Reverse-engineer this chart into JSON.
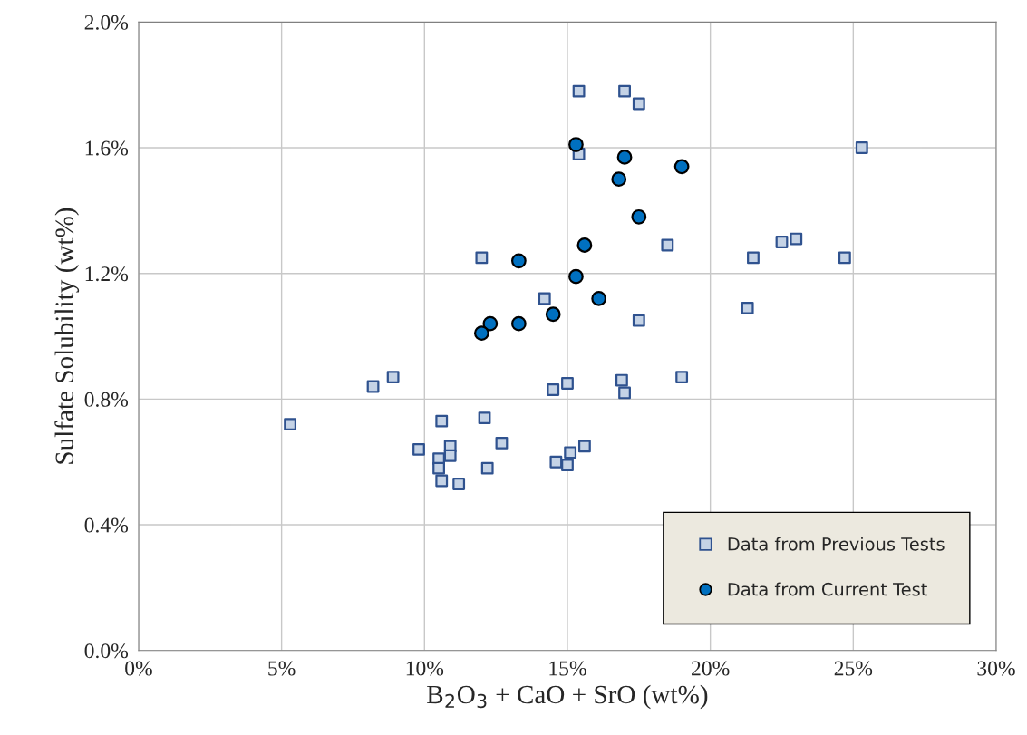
{
  "chart_data": {
    "type": "scatter",
    "xlabel": "B$_{2}$O$_{3}$ + CaO + SrO (wt%)",
    "ylabel": "Sulfate Solubility (wt%)",
    "xlim": [
      0,
      30
    ],
    "ylim": [
      0,
      2
    ],
    "xticks": [
      {
        "value": 0,
        "label": "0%"
      },
      {
        "value": 5,
        "label": "5%"
      },
      {
        "value": 10,
        "label": "10%"
      },
      {
        "value": 15,
        "label": "15%"
      },
      {
        "value": 20,
        "label": "20%"
      },
      {
        "value": 25,
        "label": "25%"
      },
      {
        "value": 30,
        "label": "30%"
      }
    ],
    "yticks": [
      {
        "value": 0,
        "label": "0.0%"
      },
      {
        "value": 0.4,
        "label": "0.4%"
      },
      {
        "value": 0.8,
        "label": "0.8%"
      },
      {
        "value": 1.2,
        "label": "1.2%"
      },
      {
        "value": 1.6,
        "label": "1.6%"
      },
      {
        "value": 2.0,
        "label": "2.0%"
      }
    ],
    "grid": true,
    "legend": "bottom right",
    "series": [
      {
        "name": "Data from Previous Tests",
        "color": "#c5d3e6",
        "marker": "square",
        "x": [
          5.3,
          8.2,
          8.9,
          9.8,
          10.5,
          10.5,
          10.6,
          10.6,
          10.9,
          10.9,
          11.2,
          12.0,
          12.1,
          12.2,
          12.7,
          14.2,
          14.5,
          14.6,
          15.0,
          15.0,
          15.1,
          15.4,
          15.4,
          15.6,
          17.0,
          16.9,
          17.0,
          17.5,
          17.5,
          18.5,
          19.0,
          21.3,
          21.5,
          22.5,
          23.0,
          24.7,
          25.3
        ],
        "values": [
          0.72,
          0.84,
          0.87,
          0.64,
          0.61,
          0.58,
          0.54,
          0.73,
          0.65,
          0.62,
          0.53,
          1.25,
          0.74,
          0.58,
          0.66,
          1.12,
          0.83,
          0.6,
          0.85,
          0.59,
          0.63,
          1.78,
          1.58,
          0.65,
          1.78,
          0.86,
          0.82,
          1.74,
          1.05,
          1.29,
          0.87,
          1.09,
          1.25,
          1.3,
          1.31,
          1.25,
          1.6
        ]
      },
      {
        "name": "Data from Current Test",
        "color": "#0070c0",
        "marker": "circle",
        "x": [
          15.3,
          17.0,
          19.0,
          16.8,
          17.5,
          15.6,
          13.3,
          15.3,
          16.1,
          12.3,
          14.5,
          13.3,
          12.0
        ],
        "values": [
          1.61,
          1.57,
          1.54,
          1.5,
          1.38,
          1.29,
          1.24,
          1.19,
          1.12,
          1.04,
          1.07,
          1.04,
          1.01
        ]
      }
    ]
  }
}
